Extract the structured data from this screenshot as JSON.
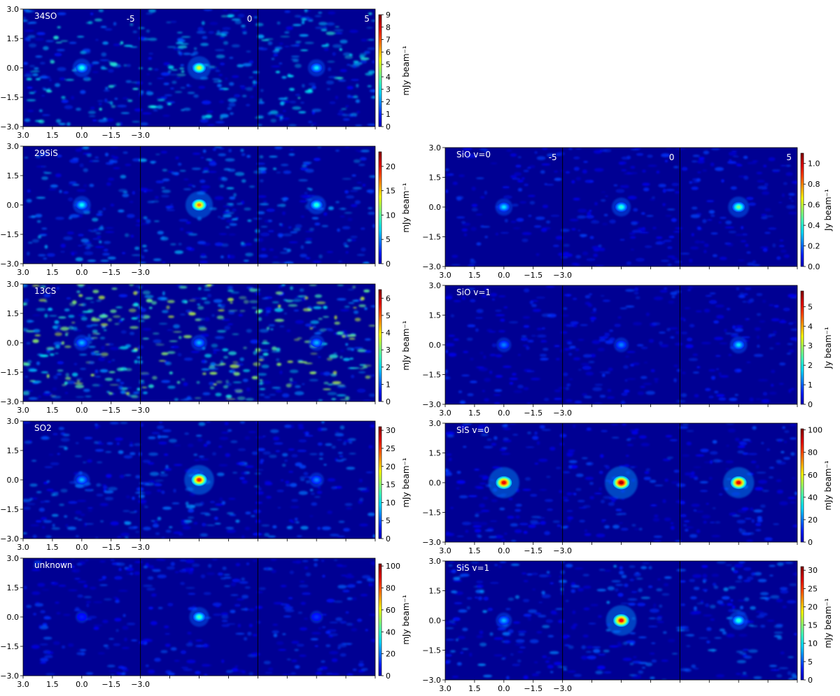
{
  "chart_data": [
    {
      "type": "heatmap",
      "molecule": "34SO",
      "velocity_labels": [
        "-5",
        "0",
        "5"
      ],
      "xlim": [
        3.0,
        -3.0
      ],
      "ylim": [
        -3.0,
        3.0
      ],
      "x_ticks": [
        "3.0",
        "1.5",
        "0.0",
        "−1.5",
        "−3.0"
      ],
      "y_ticks": [
        "3.0",
        "1.5",
        "0.0",
        "−1.5",
        "−3.0"
      ],
      "colorbar": {
        "min": 0,
        "max": 9,
        "ticks": [
          0,
          1,
          2,
          3,
          4,
          5,
          6,
          7,
          8,
          9
        ],
        "label": "mJy beam⁻¹",
        "cmap": "jet"
      },
      "peaks": [
        0.4,
        0.6,
        0.35
      ],
      "noise": 0.28
    },
    {
      "type": "heatmap",
      "molecule": "29SiS",
      "velocity_labels": [],
      "xlim": [
        3.0,
        -3.0
      ],
      "ylim": [
        -3.0,
        3.0
      ],
      "x_ticks": [
        "3.0",
        "1.5",
        "0.0",
        "−1.5",
        "−3.0"
      ],
      "y_ticks": [
        "3.0",
        "1.5",
        "0.0",
        "−1.5",
        "−3.0"
      ],
      "colorbar": {
        "min": 0,
        "max": 23,
        "ticks": [
          0,
          5,
          10,
          15,
          20
        ],
        "label": "mJy beam⁻¹",
        "cmap": "jet"
      },
      "peaks": [
        0.38,
        0.75,
        0.42
      ],
      "noise": 0.2
    },
    {
      "type": "heatmap",
      "molecule": "13CS",
      "velocity_labels": [],
      "xlim": [
        3.0,
        -3.0
      ],
      "ylim": [
        -3.0,
        3.0
      ],
      "x_ticks": [
        "3.0",
        "1.5",
        "0.0",
        "−1.5",
        "−3.0"
      ],
      "y_ticks": [
        "3.0",
        "1.5",
        "0.0",
        "−1.5",
        "−3.0"
      ],
      "colorbar": {
        "min": 0,
        "max": 6.5,
        "ticks": [
          0,
          1,
          2,
          3,
          4,
          5,
          6
        ],
        "label": "mJy beam⁻¹",
        "cmap": "jet"
      },
      "peaks": [
        0.3,
        0.3,
        0.3
      ],
      "noise": 0.42
    },
    {
      "type": "heatmap",
      "molecule": "SO2",
      "velocity_labels": [],
      "xlim": [
        3.0,
        -3.0
      ],
      "ylim": [
        -3.0,
        3.0
      ],
      "x_ticks": [
        "3.0",
        "1.5",
        "0.0",
        "−1.5",
        "−3.0"
      ],
      "y_ticks": [
        "3.0",
        "1.5",
        "0.0",
        "−1.5",
        "−3.0"
      ],
      "colorbar": {
        "min": 0,
        "max": 31,
        "ticks": [
          0,
          5,
          10,
          15,
          20,
          25,
          30
        ],
        "label": "mJy beam⁻¹",
        "cmap": "jet"
      },
      "peaks": [
        0.3,
        0.85,
        0.25
      ],
      "noise": 0.17
    },
    {
      "type": "heatmap",
      "molecule": "unknown",
      "velocity_labels": [],
      "xlim": [
        3.0,
        -3.0
      ],
      "ylim": [
        -3.0,
        3.0
      ],
      "x_ticks": [
        "3.0",
        "1.5",
        "0.0",
        "−1.5",
        "−3.0"
      ],
      "y_ticks": [
        "3.0",
        "1.5",
        "0.0",
        "−1.5",
        "−3.0"
      ],
      "colorbar": {
        "min": 0,
        "max": 102,
        "ticks": [
          0,
          20,
          40,
          60,
          80,
          100
        ],
        "label": "mJy beam⁻¹",
        "cmap": "jet"
      },
      "peaks": [
        0.15,
        0.45,
        0.17
      ],
      "noise": 0.12
    },
    {
      "type": "heatmap",
      "molecule": "SiO v=0",
      "velocity_labels": [
        "-5",
        "0",
        "5"
      ],
      "xlim": [
        3.0,
        -3.0
      ],
      "ylim": [
        -3.0,
        3.0
      ],
      "x_ticks": [
        "3.0",
        "1.5",
        "0.0",
        "−1.5",
        "−3.0"
      ],
      "y_ticks": [
        "3.0",
        "1.5",
        "0.0",
        "−1.5",
        "−3.0"
      ],
      "colorbar": {
        "min": 0,
        "max": 1.1,
        "ticks": [
          0.0,
          0.2,
          0.4,
          0.6,
          0.8,
          1.0
        ],
        "label": "Jy beam⁻¹",
        "cmap": "jet",
        "decimals": 1
      },
      "peaks": [
        0.35,
        0.42,
        0.5
      ],
      "noise": 0.1
    },
    {
      "type": "heatmap",
      "molecule": "SiO v=1",
      "velocity_labels": [],
      "xlim": [
        3.0,
        -3.0
      ],
      "ylim": [
        -3.0,
        3.0
      ],
      "x_ticks": [
        "3.0",
        "1.5",
        "0.0",
        "−1.5",
        "−3.0"
      ],
      "y_ticks": [
        "3.0",
        "1.5",
        "0.0",
        "−1.5",
        "−3.0"
      ],
      "colorbar": {
        "min": 0,
        "max": 5.8,
        "ticks": [
          0,
          1,
          2,
          3,
          4,
          5
        ],
        "label": "Jy beam⁻¹",
        "cmap": "jet"
      },
      "peaks": [
        0.25,
        0.25,
        0.35
      ],
      "noise": 0.1
    },
    {
      "type": "heatmap",
      "molecule": "SiS v=0",
      "velocity_labels": [],
      "xlim": [
        3.0,
        -3.0
      ],
      "ylim": [
        -3.0,
        3.0
      ],
      "x_ticks": [
        "3.0",
        "1.5",
        "0.0",
        "−1.5",
        "−3.0"
      ],
      "y_ticks": [
        "3.0",
        "1.5",
        "0.0",
        "−1.5",
        "−3.0"
      ],
      "colorbar": {
        "min": 0,
        "max": 101,
        "ticks": [
          0,
          20,
          40,
          60,
          80,
          100
        ],
        "label": "mJy beam⁻¹",
        "cmap": "jet"
      },
      "peaks": [
        0.9,
        0.97,
        0.9
      ],
      "noise": 0.12
    },
    {
      "type": "heatmap",
      "molecule": "SiS v=1",
      "velocity_labels": [],
      "xlim": [
        3.0,
        -3.0
      ],
      "ylim": [
        -3.0,
        3.0
      ],
      "x_ticks": [
        "3.0",
        "1.5",
        "0.0",
        "−1.5",
        "−3.0"
      ],
      "y_ticks": [
        "3.0",
        "1.5",
        "0.0",
        "−1.5",
        "−3.0"
      ],
      "colorbar": {
        "min": 0,
        "max": 31,
        "ticks": [
          0,
          5,
          10,
          15,
          20,
          25,
          30
        ],
        "label": "mJy beam⁻¹",
        "cmap": "jet"
      },
      "peaks": [
        0.3,
        0.88,
        0.42
      ],
      "noise": 0.17
    }
  ]
}
